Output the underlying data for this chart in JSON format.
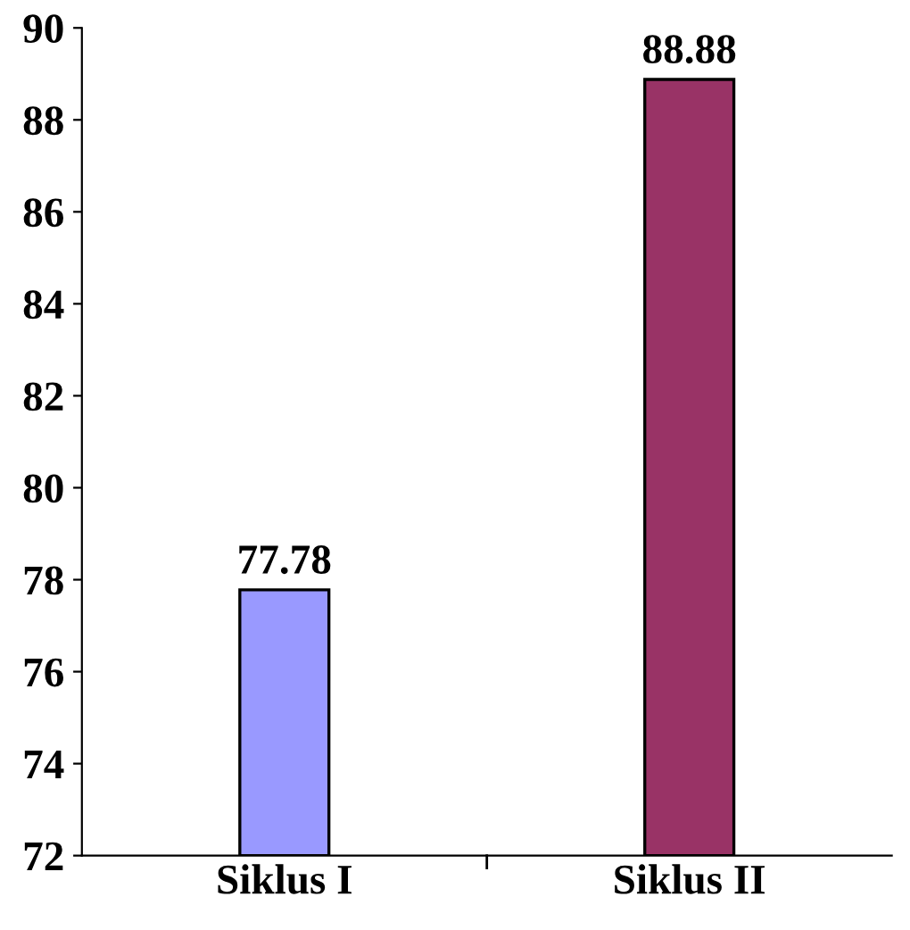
{
  "chart_data": {
    "type": "bar",
    "categories": [
      "Siklus I",
      "Siklus II"
    ],
    "values": [
      77.78,
      88.88
    ],
    "colors": [
      "#9999ff",
      "#993366"
    ],
    "ylim": [
      72,
      90
    ],
    "yticks": [
      72,
      74,
      76,
      78,
      80,
      82,
      84,
      86,
      88,
      90
    ],
    "data_labels": true,
    "grid": false
  }
}
